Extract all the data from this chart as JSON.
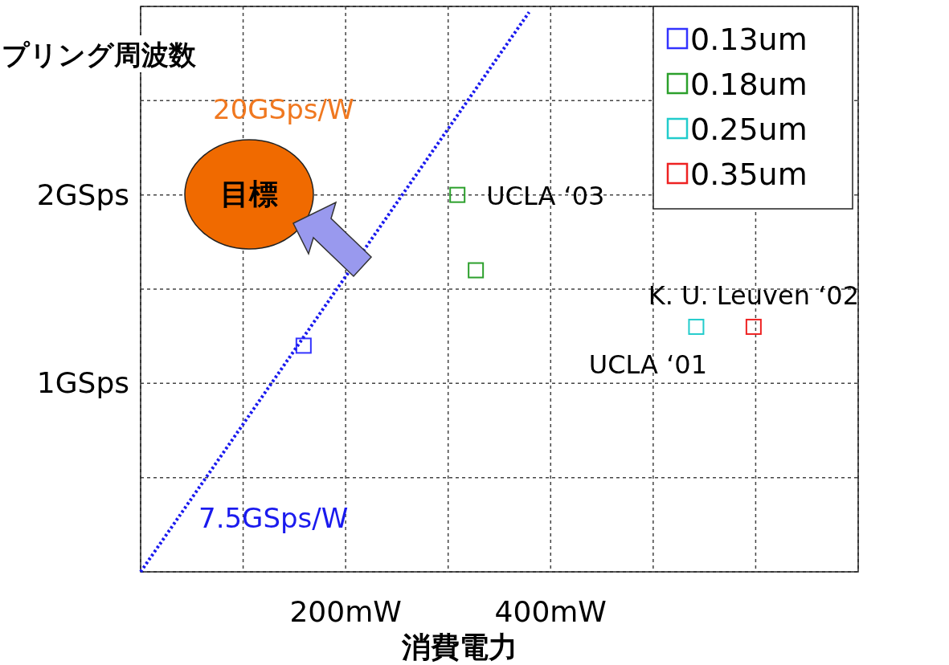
{
  "chart_data": {
    "type": "scatter",
    "xlabel": "消費電力",
    "ylabel": "プリング周波数",
    "xlim": [
      0,
      700
    ],
    "ylim": [
      0,
      3
    ],
    "xticks": [
      {
        "value": 0,
        "label": null
      },
      {
        "value": 100,
        "label": null
      },
      {
        "value": 200,
        "label": "200mW"
      },
      {
        "value": 300,
        "label": null
      },
      {
        "value": 400,
        "label": "400mW"
      },
      {
        "value": 500,
        "label": null
      },
      {
        "value": 600,
        "label": null
      },
      {
        "value": 700,
        "label": null
      }
    ],
    "yticks": [
      {
        "value": 0,
        "label": null
      },
      {
        "value": 0.5,
        "label": null
      },
      {
        "value": 1,
        "label": "1GSps"
      },
      {
        "value": 1.5,
        "label": null
      },
      {
        "value": 2,
        "label": "2GSps"
      },
      {
        "value": 2.5,
        "label": null
      },
      {
        "value": 3,
        "label": null
      }
    ],
    "grid": true,
    "legend": "top right",
    "marker": "square",
    "series": [
      {
        "name": "0.13um",
        "color": "#3333ff",
        "x": [
          159
        ],
        "values": [
          1.2
        ]
      },
      {
        "name": "0.18um",
        "color": "#2ca02c",
        "x": [
          309,
          327
        ],
        "values": [
          2.0,
          1.6
        ]
      },
      {
        "name": "0.25um",
        "color": "#22cccc",
        "x": [
          542
        ],
        "values": [
          1.3
        ]
      },
      {
        "name": "0.35um",
        "color": "#ee2222",
        "x": [
          598
        ],
        "values": [
          1.3
        ]
      },
      {
        "name": "7.5GSps/W",
        "type": "line",
        "color": "#1a1aee",
        "line_style": "dotted",
        "marker": "none",
        "x": [
          0,
          379
        ],
        "values": [
          0,
          2.97
        ]
      }
    ],
    "annotations": [
      "20GSps/W",
      "目標",
      {
        "text": "UCLA ‘03",
        "x": 309,
        "y": 2.0
      },
      {
        "text": "K. U. Leuven ‘02",
        "x": 598,
        "y": 1.3
      },
      {
        "text": "UCLA ‘01",
        "x": 542,
        "y": 1.3
      }
    ]
  }
}
